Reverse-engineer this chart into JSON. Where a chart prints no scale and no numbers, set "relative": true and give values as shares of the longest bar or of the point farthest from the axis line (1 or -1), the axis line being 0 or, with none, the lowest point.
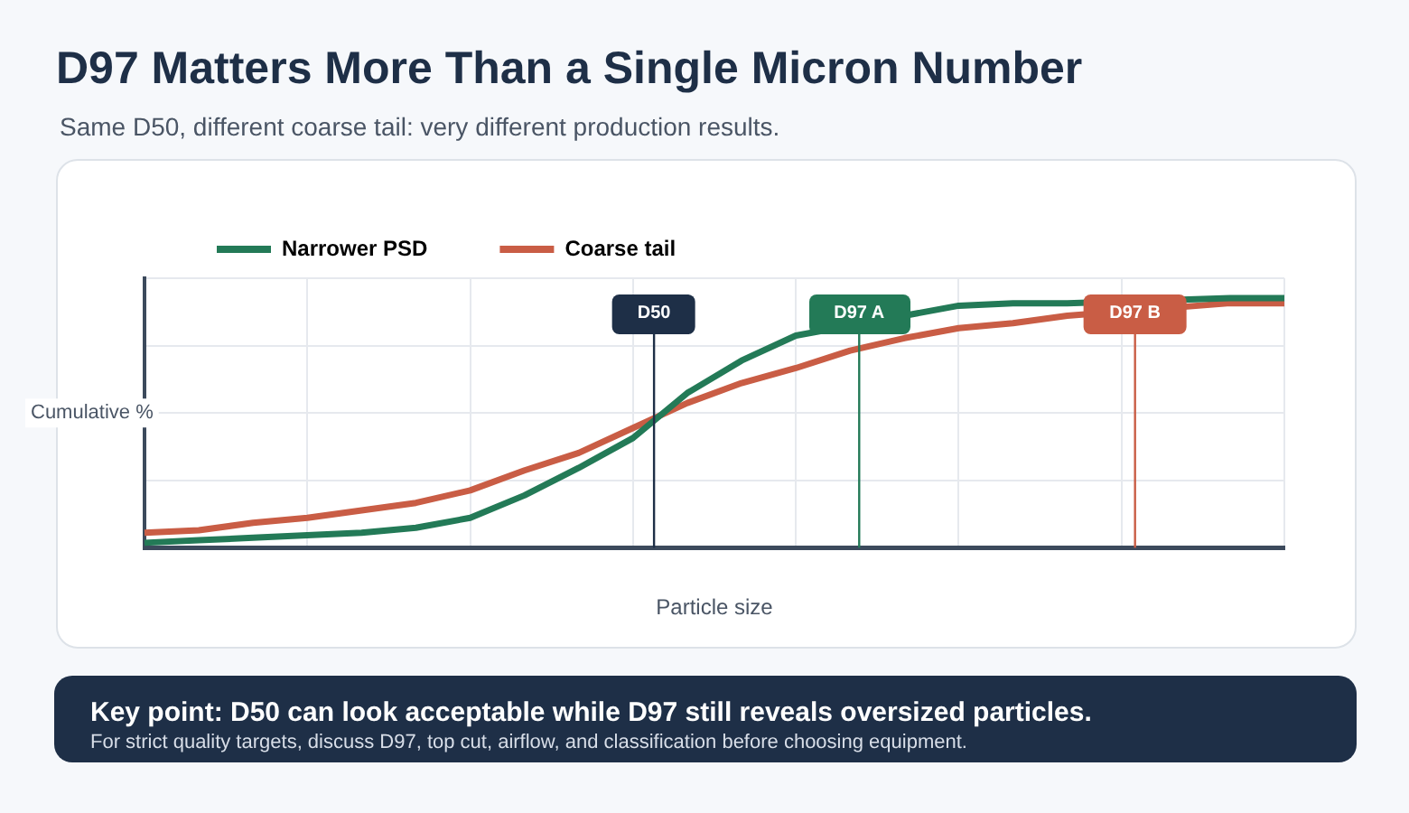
{
  "chart_data": {
    "type": "line",
    "title": "D97 Matters More Than a Single Micron Number",
    "subtitle": "Same D50, different coarse tail: very different production results.",
    "xlabel": "Particle size",
    "ylabel": "Cumulative %",
    "relative": true,
    "categories": [
      null,
      null,
      null,
      null,
      null,
      null,
      null,
      null,
      null,
      null,
      null,
      null,
      null,
      null,
      null,
      null,
      null,
      null,
      null,
      null,
      null,
      null
    ],
    "grid": true,
    "legend": "top left",
    "marker": "none",
    "line_style": "solid",
    "series": [
      {
        "name": "Narrower PSD",
        "color": "#237a57",
        "values": [
          0.02,
          0.03,
          0.04,
          0.05,
          0.06,
          0.08,
          0.12,
          0.21,
          0.32,
          0.44,
          0.62,
          0.75,
          0.85,
          null,
          null,
          0.97,
          0.98,
          0.98,
          null,
          null,
          1,
          1
        ]
      },
      {
        "name": "Coarse tail",
        "color": "#c95d45",
        "values": [
          0.06,
          0.07,
          0.1,
          0.12,
          0.15,
          0.18,
          0.23,
          0.31,
          0.38,
          0.48,
          0.58,
          0.66,
          0.72,
          0.79,
          0.84,
          0.88,
          0.9,
          0.93,
          null,
          null,
          0.98,
          0.98
        ]
      }
    ],
    "annotations": [
      "D50",
      "D97 A",
      "D97 B",
      "Key point: D50 can look acceptable while D97 still reveals oversized particles.",
      "For strict quality targets, discuss D97, top cut, airflow, and classification before choosing equipment."
    ]
  }
}
